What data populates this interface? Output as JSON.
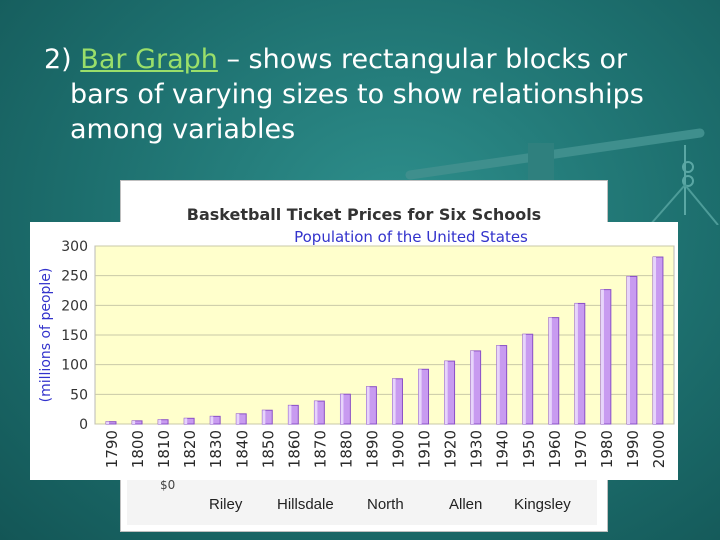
{
  "slide": {
    "prefix": "2) ",
    "term": "Bar Graph",
    "line1_rest": " – shows rectangular blocks or",
    "line2": "bars of varying sizes to show relationships",
    "line3": "among variables"
  },
  "back_chart": {
    "title": "Basketball Ticket Prices for Six Schools",
    "schools": [
      "Riley",
      "Hillsdale",
      "North",
      "Allen",
      "Kingsley"
    ],
    "fragment": "$0"
  },
  "colors": {
    "background": "#1d6f6e",
    "term": "#9adf6a",
    "plot_bg": "#ffffcc",
    "bar": "#c89bf0",
    "bar_edge": "#8a50c6",
    "title": "#3333cc"
  },
  "chart_data": {
    "type": "bar",
    "title": "Population of the United States",
    "xlabel": "",
    "ylabel": "(millions of people)",
    "categories": [
      "1790",
      "1800",
      "1810",
      "1820",
      "1830",
      "1840",
      "1850",
      "1860",
      "1870",
      "1880",
      "1890",
      "1900",
      "1910",
      "1920",
      "1930",
      "1940",
      "1950",
      "1960",
      "1970",
      "1980",
      "1990",
      "2000"
    ],
    "values": [
      3.9,
      5.3,
      7.2,
      9.6,
      12.9,
      17.1,
      23.2,
      31.4,
      38.6,
      50.2,
      62.9,
      76.2,
      92.2,
      106.0,
      123.2,
      132.2,
      151.3,
      179.3,
      203.2,
      226.5,
      248.7,
      281.4
    ],
    "ylim": [
      0,
      300
    ],
    "yticks": [
      0,
      50,
      100,
      150,
      200,
      250,
      300
    ],
    "grid": true,
    "legend": "none"
  }
}
